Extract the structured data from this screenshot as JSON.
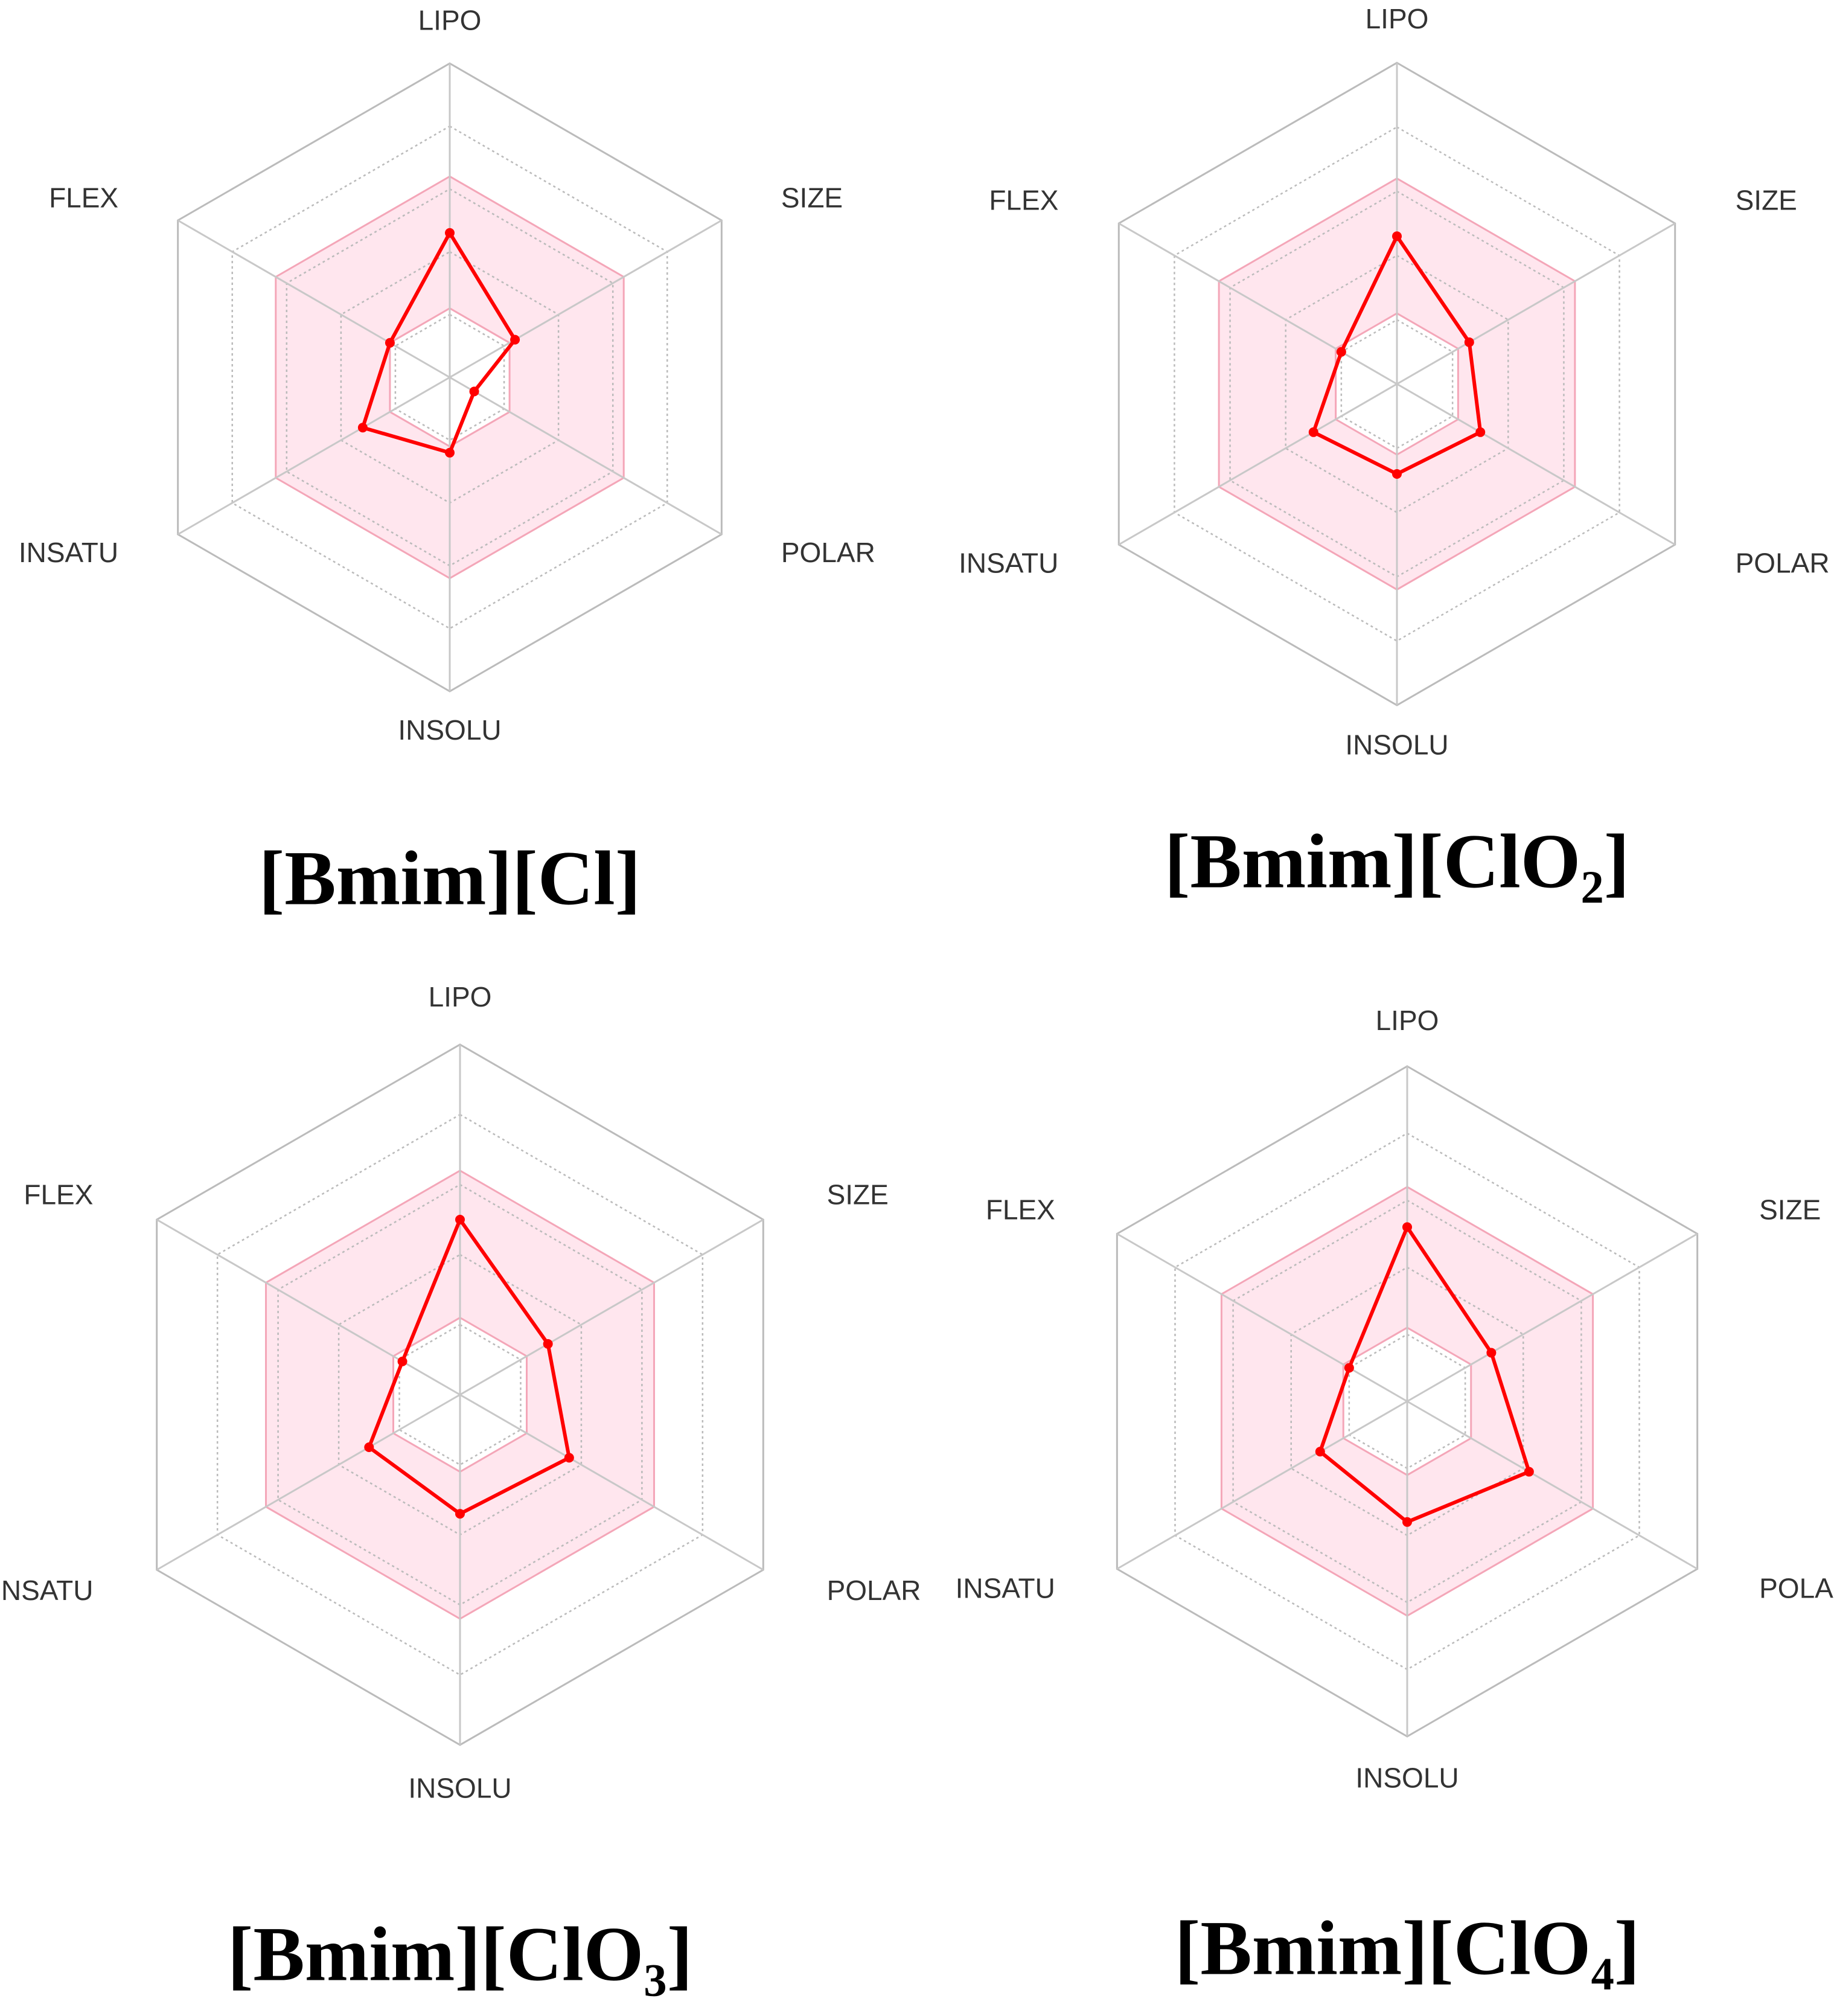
{
  "chart_data": [
    {
      "type": "radar",
      "title": "[Bmim][Cl]",
      "categories": [
        "LIPO",
        "SIZE",
        "POLAR",
        "INSOLU",
        "INSATU",
        "FLEX"
      ],
      "values": [
        2.3,
        1.2,
        0.45,
        1.2,
        1.6,
        1.1
      ],
      "rlim": [
        0,
        5
      ],
      "rticks": [
        1,
        2,
        3,
        4,
        5
      ],
      "optimal_range": [
        1.1,
        3.2
      ],
      "color": "#ff0000",
      "band_color": "#ffe6ee"
    },
    {
      "type": "radar",
      "title": "[Bmim][ClO₂]",
      "categories": [
        "LIPO",
        "SIZE",
        "POLAR",
        "INSOLU",
        "INSATU",
        "FLEX"
      ],
      "values": [
        2.3,
        1.3,
        1.5,
        1.4,
        1.5,
        1.0
      ],
      "rlim": [
        0,
        5
      ],
      "rticks": [
        1,
        2,
        3,
        4,
        5
      ],
      "optimal_range": [
        1.1,
        3.2
      ],
      "color": "#ff0000",
      "band_color": "#ffe6ee"
    },
    {
      "type": "radar",
      "title": "[Bmim][ClO₃]",
      "categories": [
        "LIPO",
        "SIZE",
        "POLAR",
        "INSOLU",
        "INSATU",
        "FLEX"
      ],
      "values": [
        2.5,
        1.45,
        1.8,
        1.7,
        1.5,
        0.95
      ],
      "rlim": [
        0,
        5
      ],
      "rticks": [
        1,
        2,
        3,
        4,
        5
      ],
      "optimal_range": [
        1.1,
        3.2
      ],
      "color": "#ff0000",
      "band_color": "#ffe6ee"
    },
    {
      "type": "radar",
      "title": "[Bmim][ClO₄]",
      "categories": [
        "LIPO",
        "SIZE",
        "POLAR",
        "INSOLU",
        "INSATU",
        "FLEX"
      ],
      "values": [
        2.6,
        1.45,
        2.1,
        1.8,
        1.5,
        1.0
      ],
      "rlim": [
        0,
        5
      ],
      "rticks": [
        1,
        2,
        3,
        4,
        5
      ],
      "optimal_range": [
        1.1,
        3.2
      ],
      "color": "#ff0000",
      "band_color": "#ffe6ee"
    }
  ]
}
